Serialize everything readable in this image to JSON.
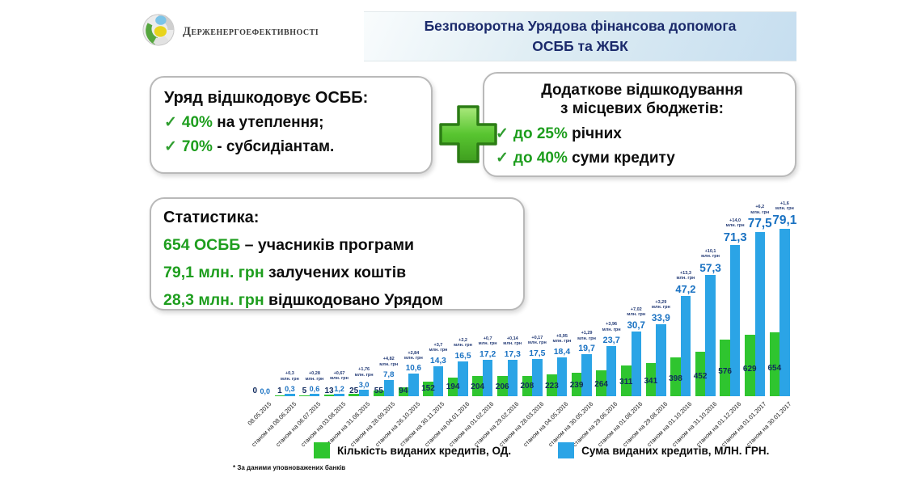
{
  "header": {
    "logo_text": "Держенергоефективності",
    "title_line1": "Безповоротна Урядова фінансова допомога",
    "title_line2": "ОСББ та ЖБК"
  },
  "left_box": {
    "title": "Уряд відшкодовує ОСББ:",
    "items": [
      {
        "check": "✓",
        "highlight": "40%",
        "rest": " на утеплення;"
      },
      {
        "check": "✓",
        "highlight": "70%",
        "rest": " - субсидіантам."
      }
    ]
  },
  "right_box": {
    "title_line1": "Додаткове відшкодування",
    "title_line2": "з місцевих бюджетів:",
    "items": [
      {
        "check": "✓",
        "highlight": "до 25%",
        "rest": " річних"
      },
      {
        "check": "✓",
        "highlight": "до 40%",
        "rest": " суми кредиту"
      }
    ]
  },
  "stats_box": {
    "title": "Статистика:",
    "items": [
      {
        "highlight": "654 ОСББ",
        "rest": " – учасників програми"
      },
      {
        "highlight": "79,1 млн. грн",
        "rest": " залучених коштів"
      },
      {
        "highlight": "28,3 млн. грн",
        "rest": " відшкодовано Урядом"
      }
    ]
  },
  "chart_data": {
    "type": "bar",
    "title": "",
    "categories": [
      "08.05.2015",
      "станом на 08.06.2015",
      "станом на 06.07.2015",
      "станом на 03.08.2015",
      "станом на 31.08.2015",
      "станом на 28.09.2015",
      "станом на 26.10.2015",
      "станом на 30.11.2015",
      "станом на 04.01.2016",
      "станом на 01.02.2016",
      "станом на 29.02.2016",
      "станом на 28.03.2016",
      "станом на 04.05.2016",
      "станом на 30.05.2016",
      "станом на 29.06.2016",
      "станом на 01.08.2016",
      "станом на 29.08.2016",
      "станом на 01.10.2016",
      "станом на 31.10.2016",
      "станом на 01.12.2016",
      "станом на 01.01.2017",
      "станом на 30.01.2017"
    ],
    "series": [
      {
        "name": "Кількість виданих кредитів, ОД.",
        "color": "#2fc52f",
        "axis_max": 654,
        "values": [
          0,
          1,
          5,
          13,
          25,
          55,
          94,
          152,
          194,
          204,
          206,
          208,
          223,
          239,
          264,
          311,
          341,
          398,
          452,
          576,
          629,
          654
        ]
      },
      {
        "name": "Сума виданих кредитів, МЛН. ГРН.",
        "color": "#2ba4e6",
        "axis_max": 79.1,
        "values": [
          0.0,
          0.3,
          0.6,
          1.2,
          3.0,
          7.8,
          10.6,
          14.3,
          16.5,
          17.2,
          17.3,
          17.5,
          18.4,
          19.7,
          23.7,
          30.7,
          33.9,
          47.2,
          57.3,
          71.3,
          77.5,
          79.1
        ],
        "value_labels": [
          "0,0",
          "0,3",
          "0,6",
          "1,2",
          "3,0",
          "7,8",
          "10,6",
          "14,3",
          "16,5",
          "17,2",
          "17,3",
          "17,5",
          "18,4",
          "19,7",
          "23,7",
          "30,7",
          "33,9",
          "47,2",
          "57,3",
          "71,3",
          "77,5",
          "79,1"
        ],
        "increment_annotations": [
          null,
          "+0,3",
          "+0,28",
          "+0,67",
          "+1,76",
          "+4,82",
          "+2,84",
          "+3,7",
          "+2,2",
          "+0,7",
          "+0,14",
          "+0,17",
          "+0,95",
          "+1,29",
          "+3,96",
          "+7,02",
          "+3,29",
          "+13,3",
          "+10,1",
          "+14,0",
          "+6,2",
          "+1,6"
        ],
        "annotation_unit": "млн. грн"
      }
    ],
    "grid": false,
    "legend_position": "bottom",
    "footnote": "* За даними уповноважених банків"
  },
  "colors": {
    "title_navy": "#1b2a6b",
    "green_text": "#1e9e1e",
    "green_bar": "#2fc52f",
    "blue_bar": "#2ba4e6",
    "blue_label": "#1a72c2"
  }
}
